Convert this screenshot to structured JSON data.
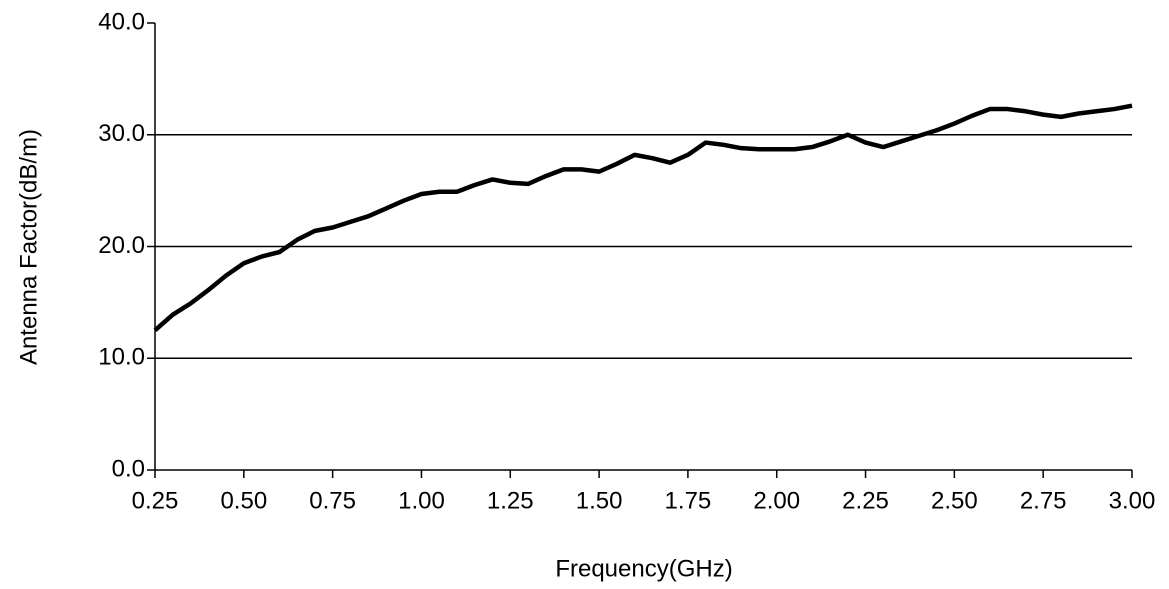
{
  "chart_data": {
    "type": "line",
    "xlabel": "Frequency(GHz)",
    "ylabel": "Antenna Factor(dB/m)",
    "x": [
      0.25,
      0.3,
      0.35,
      0.4,
      0.45,
      0.5,
      0.55,
      0.6,
      0.65,
      0.7,
      0.75,
      0.8,
      0.85,
      0.9,
      0.95,
      1.0,
      1.05,
      1.1,
      1.15,
      1.2,
      1.25,
      1.3,
      1.35,
      1.4,
      1.45,
      1.5,
      1.55,
      1.6,
      1.65,
      1.7,
      1.75,
      1.8,
      1.85,
      1.9,
      1.95,
      2.0,
      2.05,
      2.1,
      2.15,
      2.2,
      2.25,
      2.3,
      2.35,
      2.4,
      2.45,
      2.5,
      2.55,
      2.6,
      2.65,
      2.7,
      2.75,
      2.8,
      2.85,
      2.9,
      2.95,
      3.0
    ],
    "series": [
      {
        "name": "Antenna Factor",
        "color": "#000000",
        "values": [
          12.5,
          13.9,
          14.9,
          16.1,
          17.4,
          18.5,
          19.1,
          19.5,
          20.6,
          21.4,
          21.7,
          22.2,
          22.7,
          23.4,
          24.1,
          24.7,
          24.9,
          24.9,
          25.5,
          26.0,
          25.7,
          25.6,
          26.3,
          26.9,
          26.9,
          26.7,
          27.4,
          28.2,
          27.9,
          27.5,
          28.2,
          29.3,
          29.1,
          28.8,
          28.7,
          28.7,
          28.7,
          28.9,
          29.4,
          30.0,
          29.3,
          28.9,
          29.4,
          29.9,
          30.4,
          31.0,
          31.7,
          32.3,
          32.3,
          32.1,
          31.8,
          31.6,
          31.9,
          32.1,
          32.3,
          32.6
        ]
      }
    ],
    "xlim": [
      0.25,
      3.0
    ],
    "ylim": [
      0,
      40
    ],
    "xticks": [
      {
        "value": 0.25,
        "label": "0.25"
      },
      {
        "value": 0.5,
        "label": "0.50"
      },
      {
        "value": 0.75,
        "label": "0.75"
      },
      {
        "value": 1.0,
        "label": "1.00"
      },
      {
        "value": 1.25,
        "label": "1.25"
      },
      {
        "value": 1.5,
        "label": "1.50"
      },
      {
        "value": 1.75,
        "label": "1.75"
      },
      {
        "value": 2.0,
        "label": "2.00"
      },
      {
        "value": 2.25,
        "label": "2.25"
      },
      {
        "value": 2.5,
        "label": "2.50"
      },
      {
        "value": 2.75,
        "label": "2.75"
      },
      {
        "value": 3.0,
        "label": "3.00"
      }
    ],
    "yticks": [
      {
        "value": 0,
        "label": "0.0"
      },
      {
        "value": 10,
        "label": "10.0"
      },
      {
        "value": 20,
        "label": "20.0"
      },
      {
        "value": 30,
        "label": "30.0"
      },
      {
        "value": 40,
        "label": "40.0"
      }
    ],
    "grid": true
  }
}
